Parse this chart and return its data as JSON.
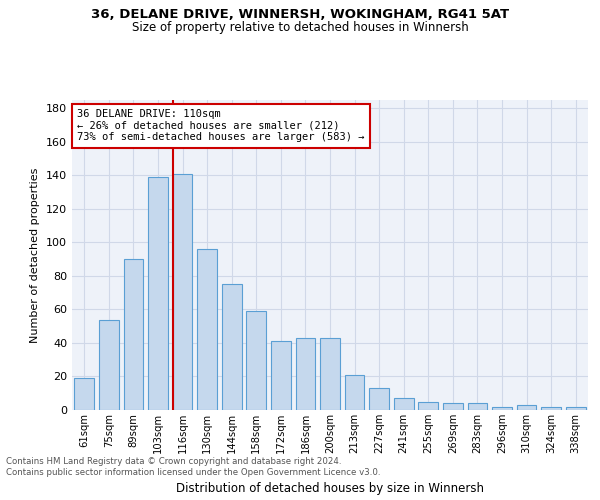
{
  "title": "36, DELANE DRIVE, WINNERSH, WOKINGHAM, RG41 5AT",
  "subtitle": "Size of property relative to detached houses in Winnersh",
  "xlabel": "Distribution of detached houses by size in Winnersh",
  "ylabel": "Number of detached properties",
  "bar_labels": [
    "61sqm",
    "75sqm",
    "89sqm",
    "103sqm",
    "116sqm",
    "130sqm",
    "144sqm",
    "158sqm",
    "172sqm",
    "186sqm",
    "200sqm",
    "213sqm",
    "227sqm",
    "241sqm",
    "255sqm",
    "269sqm",
    "283sqm",
    "296sqm",
    "310sqm",
    "324sqm",
    "338sqm"
  ],
  "bar_values": [
    19,
    54,
    90,
    139,
    141,
    96,
    75,
    59,
    41,
    43,
    43,
    21,
    13,
    7,
    5,
    4,
    4,
    2,
    3,
    2,
    2
  ],
  "bar_color": "#c5d8ed",
  "bar_edge_color": "#5a9fd4",
  "annotation_line1": "36 DELANE DRIVE: 110sqm",
  "annotation_line2": "← 26% of detached houses are smaller (212)",
  "annotation_line3": "73% of semi-detached houses are larger (583) →",
  "annotation_box_color": "#ffffff",
  "annotation_box_edge_color": "#cc0000",
  "ref_line_bar_index": 4,
  "ylim": [
    0,
    185
  ],
  "yticks": [
    0,
    20,
    40,
    60,
    80,
    100,
    120,
    140,
    160,
    180
  ],
  "grid_color": "#d0d8e8",
  "background_color": "#eef2f9",
  "footer_line1": "Contains HM Land Registry data © Crown copyright and database right 2024.",
  "footer_line2": "Contains public sector information licensed under the Open Government Licence v3.0."
}
